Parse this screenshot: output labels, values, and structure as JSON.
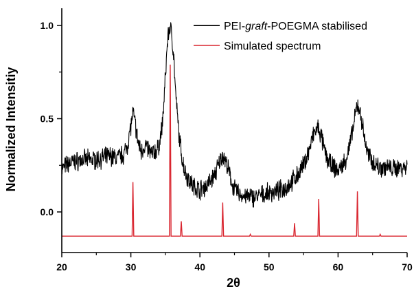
{
  "chart_data": {
    "type": "line",
    "xlabel": "2θ",
    "ylabel": "Normalized Intensitiy",
    "xlim": [
      20,
      70
    ],
    "ylim": [
      -0.15,
      1.05
    ],
    "x_ticks": [
      20,
      30,
      40,
      50,
      60,
      70
    ],
    "x_tick_labels": [
      "20",
      "30",
      "40",
      "50",
      "60",
      "70"
    ],
    "y_ticks": [
      0.0,
      0.5,
      1.0
    ],
    "y_tick_labels": [
      "0.0",
      "0.5",
      "1.0"
    ],
    "grid": false,
    "legend_position": "top-right",
    "series": [
      {
        "name": "PEI-graft-POEGMA stabilised",
        "name_parts": [
          "PEI-",
          "graft",
          "-POEGMA stabilised"
        ],
        "color": "#000000",
        "noisy": true,
        "x": [
          20,
          21,
          22,
          23,
          24,
          25,
          26,
          27,
          28,
          29,
          29.5,
          30,
          30.3,
          30.6,
          31,
          31.5,
          32,
          33,
          34,
          34.6,
          35,
          35.3,
          35.6,
          35.9,
          36.2,
          36.5,
          37,
          37.5,
          38,
          39,
          40,
          41,
          42,
          42.7,
          43.3,
          44,
          44.5,
          45,
          46,
          47,
          48,
          49,
          50,
          51,
          52,
          53,
          54,
          55,
          55.8,
          56.5,
          57.1,
          57.6,
          58,
          58.5,
          59,
          60,
          61,
          61.6,
          62.2,
          62.8,
          63.3,
          63.8,
          64.3,
          65,
          66,
          67,
          68,
          69,
          70
        ],
        "y": [
          0.23,
          0.26,
          0.27,
          0.28,
          0.28,
          0.28,
          0.29,
          0.3,
          0.29,
          0.31,
          0.36,
          0.46,
          0.53,
          0.48,
          0.38,
          0.32,
          0.36,
          0.31,
          0.34,
          0.48,
          0.72,
          0.92,
          0.99,
          0.96,
          0.84,
          0.62,
          0.4,
          0.27,
          0.2,
          0.14,
          0.12,
          0.14,
          0.19,
          0.25,
          0.31,
          0.24,
          0.17,
          0.12,
          0.09,
          0.08,
          0.08,
          0.09,
          0.1,
          0.11,
          0.12,
          0.15,
          0.19,
          0.25,
          0.33,
          0.42,
          0.45,
          0.4,
          0.33,
          0.28,
          0.25,
          0.22,
          0.27,
          0.34,
          0.45,
          0.58,
          0.52,
          0.4,
          0.31,
          0.27,
          0.24,
          0.24,
          0.23,
          0.24,
          0.24
        ]
      },
      {
        "name": "Simulated spectrum",
        "color": "#d9252f",
        "baseline": -0.13,
        "peak_x": [
          30.3,
          35.7,
          37.3,
          43.3,
          47.3,
          53.7,
          57.2,
          62.8,
          66.1
        ],
        "peak_y": [
          0.16,
          0.79,
          -0.05,
          0.05,
          -0.12,
          -0.06,
          0.07,
          0.11,
          -0.12
        ]
      }
    ]
  }
}
